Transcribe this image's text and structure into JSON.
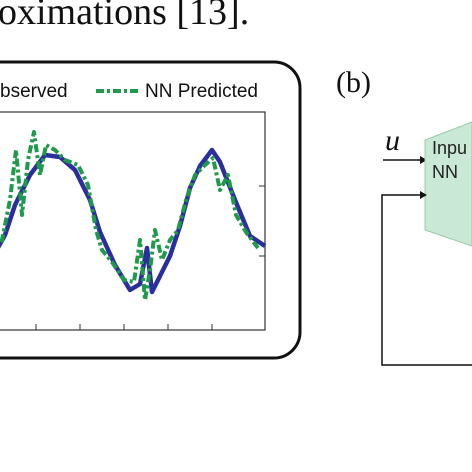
{
  "header": {
    "text": "oximations [13]."
  },
  "figure_a": {
    "legend": [
      "bserved",
      "NN Predicted"
    ]
  },
  "figure_b": {
    "label": "(b)",
    "input_symbol": "u",
    "block_lines": [
      "Inpu",
      "NN"
    ]
  }
}
